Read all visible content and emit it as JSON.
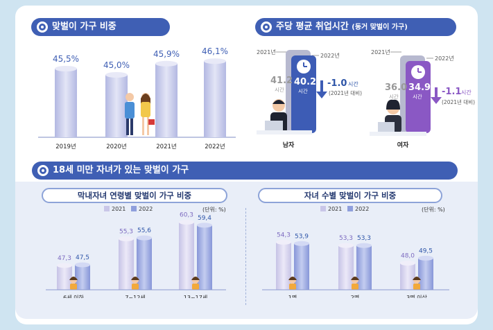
{
  "sections": {
    "top_left_title": "맞벌이 가구 비중",
    "top_right_title": "주당 평균 취업시간",
    "top_right_title_sub": "(동거 맞벌이 가구)",
    "bottom_title": "18세 미만 자녀가 있는 맞벌이 가구",
    "sub_left_title": "막내자녀 연령별 맞벌이 가구 비중",
    "sub_right_title": "자녀 수별 맞벌이 가구 비중"
  },
  "legend": {
    "s2021": "2021",
    "s2022": "2022",
    "unit": "(단위: %)"
  },
  "hours": {
    "men": {
      "label": "남자",
      "y2021_tag": "2021년",
      "y2022_tag": "2022년",
      "v2021": "41.2",
      "v2022": "40.2",
      "unit": "시간",
      "change": "-1.0",
      "change_unit": "시간",
      "note": "(2021년 대비)"
    },
    "women": {
      "label": "여자",
      "y2021_tag": "2021년",
      "y2022_tag": "2022년",
      "v2021": "36.0",
      "v2022": "34.9",
      "unit": "시간",
      "change": "-1.1",
      "change_unit": "시간",
      "note": "(2021년 대비)"
    }
  },
  "colors": {
    "navy": "#3f5fb4",
    "bar_light": "#c9c6e8",
    "bar_2022": "#8f9fdc",
    "purple": "#8a58c4",
    "label_2021": "#7d6bc0",
    "label_2022": "#2e55a8"
  },
  "chart_data": [
    {
      "type": "bar",
      "title": "맞벌이 가구 비중",
      "categories": [
        "2019년",
        "2020년",
        "2021년",
        "2022년"
      ],
      "values": [
        45.5,
        45.0,
        45.9,
        46.1
      ],
      "value_labels": [
        "45,5%",
        "45,0%",
        "45,9%",
        "46,1%"
      ]
    },
    {
      "type": "bar",
      "title": "막내자녀 연령별 맞벌이 가구 비중",
      "categories": [
        "6세 이하",
        "7~12세",
        "13~17세"
      ],
      "series": [
        {
          "name": "2021",
          "values": [
            47.3,
            55.3,
            60.3
          ]
        },
        {
          "name": "2022",
          "values": [
            47.5,
            55.6,
            59.4
          ]
        }
      ],
      "value_labels": [
        [
          "47,3",
          "55,3",
          "60,3"
        ],
        [
          "47,5",
          "55,6",
          "59,4"
        ]
      ]
    },
    {
      "type": "bar",
      "title": "자녀 수별 맞벌이 가구 비중",
      "categories": [
        "1명",
        "2명",
        "3명 이상"
      ],
      "series": [
        {
          "name": "2021",
          "values": [
            54.3,
            53.3,
            48.0
          ]
        },
        {
          "name": "2022",
          "values": [
            53.9,
            53.3,
            49.5
          ]
        }
      ],
      "value_labels": [
        [
          "54,3",
          "53,3",
          "48,0"
        ],
        [
          "53,9",
          "53,3",
          "49,5"
        ]
      ]
    }
  ]
}
